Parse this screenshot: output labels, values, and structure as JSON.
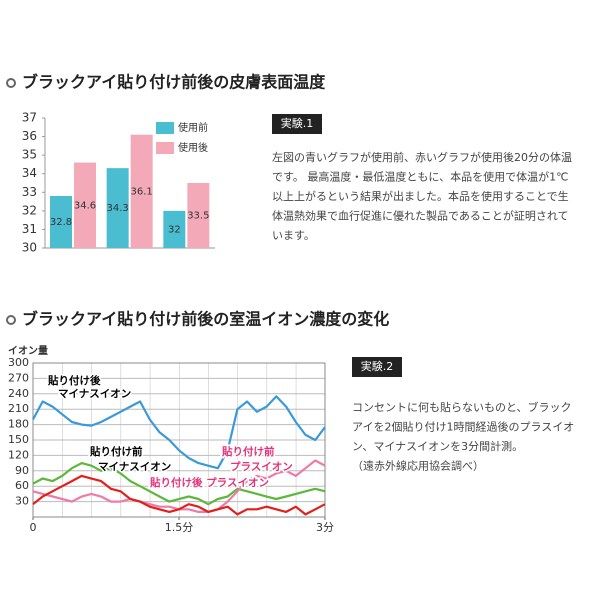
{
  "sections": [
    {
      "heading": "ブラックアイ貼り付け前後の皮膚表面温度",
      "experiment_label": "実験.1",
      "paragraph": [
        "左図の青いグラフが使用前、赤いグラフが使用後20分の体温",
        "です。 最高温度・最低温度ともに、本品を使用で体温が1℃",
        "以上上がるという結果が出ました。本品を使用することで生",
        "体温熱効果で血行促進に優れた製品であることが証明されて",
        "います。"
      ]
    },
    {
      "heading": "ブラックアイ貼り付け前後の室温イオン濃度の変化",
      "experiment_label": "実験.2",
      "paragraph": [
        "コンセントに何も貼らないものと、ブラック",
        "アイを2個貼り付け1時間経過後のプラスイオ",
        "ン、マイナスイオンを3分間計測。",
        "（遠赤外線応用協会調べ）"
      ]
    }
  ],
  "chart_data": [
    {
      "type": "bar",
      "categories": [
        null,
        null,
        null
      ],
      "ylim": [
        30,
        37
      ],
      "yticks": [
        30,
        31,
        32,
        33,
        34,
        35,
        36,
        37
      ],
      "grid": false,
      "legend": "top-right",
      "series": [
        {
          "name": "使用前",
          "color": "#4bbdd0",
          "values": [
            32.8,
            34.3,
            32
          ]
        },
        {
          "name": "使用後",
          "color": "#f4a9b8",
          "values": [
            34.6,
            36.1,
            33.5
          ]
        }
      ]
    },
    {
      "type": "line",
      "y_label": "イオン量",
      "xlim": [
        0,
        3
      ],
      "xticks": [
        0,
        {
          "value": 1.5,
          "label": "1.5分"
        },
        {
          "value": 3,
          "label": "3分"
        }
      ],
      "ylim": [
        0,
        300
      ],
      "yticks": [
        30,
        60,
        90,
        120,
        150,
        180,
        210,
        240,
        270,
        300
      ],
      "grid": true,
      "x": [
        0,
        0.1,
        0.2,
        0.3,
        0.4,
        0.5,
        0.6,
        0.7,
        0.8,
        0.9,
        1,
        1.1,
        1.2,
        1.3,
        1.4,
        1.5,
        1.6,
        1.7,
        1.8,
        1.9,
        2,
        2.1,
        2.2,
        2.3,
        2.4,
        2.5,
        2.6,
        2.7,
        2.8,
        2.9,
        3
      ],
      "series": [
        {
          "color": "#3a9ad9",
          "values": [
            190,
            225,
            215,
            200,
            185,
            180,
            178,
            185,
            195,
            205,
            215,
            225,
            190,
            165,
            150,
            130,
            115,
            105,
            100,
            95,
            130,
            210,
            225,
            205,
            215,
            235,
            215,
            185,
            160,
            150,
            175
          ]
        },
        {
          "color": "#5cb83a",
          "values": [
            65,
            75,
            70,
            80,
            95,
            105,
            100,
            90,
            95,
            85,
            70,
            60,
            50,
            40,
            30,
            35,
            40,
            35,
            25,
            35,
            40,
            55,
            50,
            45,
            40,
            35,
            40,
            45,
            50,
            55,
            50
          ]
        },
        {
          "color": "#ee7aa6",
          "values": [
            50,
            45,
            40,
            35,
            30,
            40,
            45,
            40,
            30,
            30,
            35,
            30,
            25,
            20,
            20,
            15,
            15,
            10,
            10,
            15,
            30,
            50,
            70,
            80,
            75,
            85,
            90,
            80,
            95,
            110,
            100
          ]
        },
        {
          "color": "#e0201a",
          "values": [
            25,
            40,
            50,
            60,
            70,
            80,
            75,
            70,
            55,
            50,
            35,
            30,
            20,
            15,
            10,
            15,
            25,
            20,
            10,
            15,
            20,
            5,
            15,
            15,
            20,
            15,
            10,
            20,
            5,
            15,
            25
          ]
        }
      ],
      "annotations": [
        {
          "lines": [
            "貼り付け後",
            "マイナスイオン"
          ],
          "color": "#000000"
        },
        {
          "lines": [
            "貼り付け前",
            "マイナスイオン"
          ],
          "color": "#000000"
        },
        {
          "lines": [
            "貼り付け前",
            "プラスイオン"
          ],
          "color": "#e6317a"
        },
        {
          "lines": [
            "貼り付け後 プラスイオン"
          ],
          "color": "#e6317a"
        }
      ]
    }
  ]
}
